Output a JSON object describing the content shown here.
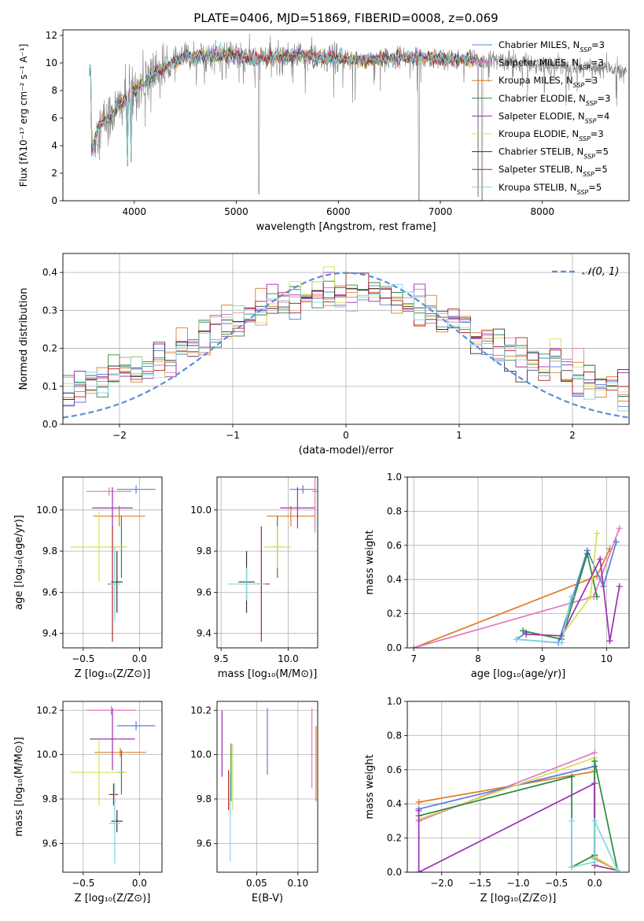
{
  "chart_data": [
    {
      "id": "spectrum",
      "type": "line",
      "title": "PLATE=0406, MJD=51869, FIBERID=0008, z=0.069",
      "xlabel": "wavelength [Angstrom, rest frame]",
      "ylabel": "Flux [fλ10⁻¹⁷ erg cm⁻² s⁻¹ A⁻¹]",
      "xlim": [
        3300,
        8850
      ],
      "ylim": [
        0,
        12.4
      ],
      "xticks": [
        4000,
        5000,
        6000,
        7000,
        8000
      ],
      "yticks": [
        0,
        2,
        4,
        6,
        8,
        10,
        12
      ],
      "data_range": [
        3580,
        8830
      ],
      "model_range": [
        3560,
        7420
      ],
      "legend_position": "top-right",
      "legend": [
        {
          "label": "Chabrier MILES, N_SSP=3",
          "color": "#5b7fd6"
        },
        {
          "label": "Salpeter MILES, N_SSP=3",
          "color": "#e377c2"
        },
        {
          "label": "Kroupa MILES, N_SSP=3",
          "color": "#e07b28"
        },
        {
          "label": "Chabrier ELODIE, N_SSP=3",
          "color": "#2c8a3e"
        },
        {
          "label": "Salpeter ELODIE, N_SSP=4",
          "color": "#9b30b0"
        },
        {
          "label": "Kroupa ELODIE, N_SSP=3",
          "color": "#d4e05a"
        },
        {
          "label": "Chabrier STELIB, N_SSP=5",
          "color": "#333333"
        },
        {
          "label": "Salpeter STELIB, N_SSP=5",
          "color": "#b22222"
        },
        {
          "label": "Kroupa STELIB, N_SSP=5",
          "color": "#7fd6e0"
        }
      ],
      "continuum": [
        [
          3580,
          3.6
        ],
        [
          3650,
          5.4
        ],
        [
          3700,
          5.8
        ],
        [
          3800,
          6.4
        ],
        [
          3900,
          7.3
        ],
        [
          4000,
          8.0
        ],
        [
          4100,
          8.6
        ],
        [
          4200,
          9.4
        ],
        [
          4300,
          9.6
        ],
        [
          4400,
          10.0
        ],
        [
          4500,
          10.4
        ],
        [
          4600,
          10.5
        ],
        [
          4800,
          10.6
        ],
        [
          5000,
          10.5
        ],
        [
          5200,
          10.3
        ],
        [
          5400,
          10.4
        ],
        [
          5600,
          10.6
        ],
        [
          5800,
          10.4
        ],
        [
          6000,
          10.3
        ],
        [
          6200,
          10.2
        ],
        [
          6400,
          10.3
        ],
        [
          6600,
          10.5
        ],
        [
          6800,
          10.4
        ],
        [
          7000,
          10.3
        ],
        [
          7200,
          10.2
        ],
        [
          7400,
          10.1
        ],
        [
          7600,
          10.2
        ],
        [
          7800,
          10.0
        ],
        [
          8000,
          9.9
        ],
        [
          8200,
          9.8
        ],
        [
          8400,
          9.7
        ],
        [
          8600,
          9.6
        ],
        [
          8830,
          9.5
        ]
      ],
      "dips": [
        [
          3934,
          2.5
        ],
        [
          3969,
          2.8
        ],
        [
          4102,
          7.8
        ],
        [
          4862,
          8.8
        ],
        [
          5177,
          9.3
        ],
        [
          5221,
          0.5
        ],
        [
          5890,
          9.4
        ],
        [
          6300,
          9.8
        ],
        [
          6563,
          9.6
        ],
        [
          6790,
          0
        ],
        [
          7370,
          0.3
        ],
        [
          7410,
          0
        ]
      ]
    },
    {
      "id": "residuals",
      "type": "bar",
      "xlabel": "(data-model)/error",
      "ylabel": "Normed distribution",
      "xlim": [
        -2.5,
        2.5
      ],
      "ylim": [
        0,
        0.45
      ],
      "xticks": [
        -2,
        -1,
        0,
        1,
        2
      ],
      "yticks": [
        0.0,
        0.1,
        0.2,
        0.3,
        0.4
      ],
      "bin_width": 0.1,
      "legend": [
        {
          "label": "𝒩(0, 1)",
          "color": "#5b8fd6",
          "style": "dashed"
        }
      ],
      "legend_position": "top-right"
    },
    {
      "id": "age_vs_Z",
      "type": "scatter",
      "xlabel": "Z [log₁₀(Z/Z⊙)]",
      "ylabel": "age  [log₁₀(age/yr)]",
      "xlim": [
        -0.68,
        0.2
      ],
      "ylim": [
        9.33,
        10.16
      ],
      "xticks": [
        -0.5,
        0.0
      ],
      "yticks": [
        9.4,
        9.6,
        9.8,
        10.0
      ],
      "points": [
        {
          "x": -0.03,
          "y": 10.1,
          "xerr": 0.17,
          "yerr": 0.02,
          "color": "#5b7fd6"
        },
        {
          "x": -0.27,
          "y": 10.09,
          "xerr": 0.2,
          "yerr": 0.02,
          "color": "#e377c2"
        },
        {
          "x": -0.18,
          "y": 9.97,
          "xerr": 0.23,
          "yerr": 0.05,
          "color": "#e07b28"
        },
        {
          "x": -0.24,
          "y": 10.01,
          "xerr": 0.18,
          "yerr": 0.1,
          "color": "#9b30b0"
        },
        {
          "x": -0.16,
          "y": 9.82,
          "xerr": 0.03,
          "yerr": 0.15,
          "color": "#2c8a3e"
        },
        {
          "x": -0.36,
          "y": 9.82,
          "xerr": 0.25,
          "yerr": 0.17,
          "color": "#d4e05a"
        },
        {
          "x": -0.2,
          "y": 9.65,
          "xerr": 0.05,
          "yerr": 0.15,
          "color": "#333333"
        },
        {
          "x": -0.24,
          "y": 9.64,
          "xerr": 0.04,
          "yerr": 0.28,
          "color": "#b22222"
        },
        {
          "x": -0.22,
          "y": 9.64,
          "xerr": 0.05,
          "yerr": 0.18,
          "color": "#7fd6e0"
        }
      ]
    },
    {
      "id": "age_vs_mass",
      "type": "scatter",
      "xlabel": "mass [log₁₀(M/M⊙)]",
      "ylabel": "",
      "xlim": [
        9.47,
        10.22
      ],
      "ylim": [
        9.33,
        10.16
      ],
      "xticks": [
        9.5,
        10.0
      ],
      "yticks": [
        9.4,
        9.6,
        9.8,
        10.0
      ],
      "points": [
        {
          "x": 10.11,
          "y": 10.1,
          "xerr": 0.1,
          "yerr": 0.02,
          "color": "#5b7fd6"
        },
        {
          "x": 10.2,
          "y": 10.09,
          "xerr": 0.02,
          "yerr": 0.2,
          "color": "#e377c2"
        },
        {
          "x": 10.02,
          "y": 9.97,
          "xerr": 0.18,
          "yerr": 0.05,
          "color": "#e07b28"
        },
        {
          "x": 10.07,
          "y": 10.01,
          "xerr": 0.13,
          "yerr": 0.1,
          "color": "#9b30b0"
        },
        {
          "x": 9.92,
          "y": 9.82,
          "xerr": 0.03,
          "yerr": 0.15,
          "color": "#2c8a3e"
        },
        {
          "x": 9.92,
          "y": 9.82,
          "xerr": 0.1,
          "yerr": 0.1,
          "color": "#d4e05a"
        },
        {
          "x": 9.69,
          "y": 9.65,
          "xerr": 0.06,
          "yerr": 0.15,
          "color": "#333333"
        },
        {
          "x": 9.8,
          "y": 9.64,
          "xerr": 0.06,
          "yerr": 0.28,
          "color": "#b22222"
        },
        {
          "x": 9.69,
          "y": 9.64,
          "xerr": 0.14,
          "yerr": 0.08,
          "color": "#7fd6e0"
        }
      ]
    },
    {
      "id": "mw_vs_age",
      "type": "line",
      "xlabel": "age  [log₁₀(age/yr)]",
      "ylabel": "mass weight",
      "xlim": [
        6.9,
        10.35
      ],
      "ylim": [
        0,
        1.0
      ],
      "xticks": [
        7,
        8,
        9,
        10
      ],
      "yticks": [
        0.0,
        0.2,
        0.4,
        0.6,
        0.8,
        1.0
      ],
      "series": [
        {
          "color": "#e07b28",
          "x": [
            7.0,
            9.85,
            10.05
          ],
          "y": [
            0.0,
            0.42,
            0.58
          ]
        },
        {
          "color": "#e377c2",
          "x": [
            7.0,
            9.8,
            10.2
          ],
          "y": [
            0.0,
            0.3,
            0.7
          ]
        },
        {
          "color": "#5b7fd6",
          "x": [
            8.75,
            8.6,
            9.25,
            9.7,
            9.95,
            10.15
          ],
          "y": [
            0.09,
            0.05,
            0.03,
            0.57,
            0.36,
            0.62
          ]
        },
        {
          "color": "#2c8a3e",
          "x": [
            8.7,
            9.3,
            9.7,
            9.85
          ],
          "y": [
            0.1,
            0.05,
            0.55,
            0.3
          ]
        },
        {
          "color": "#d4e05a",
          "x": [
            8.75,
            9.3,
            9.75,
            9.85
          ],
          "y": [
            0.08,
            0.07,
            0.3,
            0.67
          ]
        },
        {
          "color": "#9b30b0",
          "x": [
            8.75,
            9.3,
            9.9,
            10.05,
            10.2
          ],
          "y": [
            0.08,
            0.07,
            0.52,
            0.04,
            0.36
          ]
        },
        {
          "color": "#7fd6e0",
          "x": [
            8.6,
            9.3,
            9.45
          ],
          "y": [
            0.05,
            0.03,
            0.3
          ]
        }
      ]
    },
    {
      "id": "mass_vs_Z",
      "type": "scatter",
      "xlabel": "Z [log₁₀(Z/Z⊙)]",
      "ylabel": "mass [log₁₀(M/M⊙)]",
      "xlim": [
        -0.68,
        0.2
      ],
      "ylim": [
        9.47,
        10.24
      ],
      "xticks": [
        -0.5,
        0.0
      ],
      "yticks": [
        9.6,
        9.8,
        10.0,
        10.2
      ],
      "points": [
        {
          "x": -0.03,
          "y": 10.13,
          "xerr": 0.17,
          "yerr": 0.02,
          "color": "#5b7fd6"
        },
        {
          "x": -0.25,
          "y": 10.2,
          "xerr": 0.22,
          "yerr": 0.02,
          "color": "#e377c2"
        },
        {
          "x": -0.17,
          "y": 10.01,
          "xerr": 0.23,
          "yerr": 0.02,
          "color": "#e07b28"
        },
        {
          "x": -0.24,
          "y": 10.07,
          "xerr": 0.2,
          "yerr": 0.14,
          "color": "#9b30b0"
        },
        {
          "x": -0.16,
          "y": 9.92,
          "xerr": 0.03,
          "yerr": 0.1,
          "color": "#2c8a3e"
        },
        {
          "x": -0.36,
          "y": 9.92,
          "xerr": 0.25,
          "yerr": 0.15,
          "color": "#d4e05a"
        },
        {
          "x": -0.2,
          "y": 9.7,
          "xerr": 0.05,
          "yerr": 0.05,
          "color": "#333333"
        },
        {
          "x": -0.23,
          "y": 9.82,
          "xerr": 0.04,
          "yerr": 0.05,
          "color": "#b22222"
        },
        {
          "x": -0.22,
          "y": 9.69,
          "xerr": 0.05,
          "yerr": 0.18,
          "color": "#7fd6e0"
        }
      ]
    },
    {
      "id": "mass_vs_ebv",
      "type": "scatter",
      "xlabel": "E(B-V)",
      "ylabel": "",
      "xlim": [
        0.002,
        0.124
      ],
      "ylim": [
        9.47,
        10.24
      ],
      "xticks": [
        0.05,
        0.1
      ],
      "yticks": [
        9.6,
        9.8,
        10.0,
        10.2
      ],
      "points": [
        {
          "x": 0.063,
          "y": 10.06,
          "xerr": 0,
          "yerr": 0.15,
          "color": "#5b7fd6"
        },
        {
          "x": 0.117,
          "y": 10.03,
          "xerr": 0,
          "yerr": 0.18,
          "color": "#e377c2"
        },
        {
          "x": 0.122,
          "y": 9.96,
          "xerr": 0,
          "yerr": 0.17,
          "color": "#e07b28"
        },
        {
          "x": 0.008,
          "y": 10.05,
          "xerr": 0,
          "yerr": 0.15,
          "color": "#9b30b0"
        },
        {
          "x": 0.019,
          "y": 9.92,
          "xerr": 0,
          "yerr": 0.13,
          "color": "#2c8a3e"
        },
        {
          "x": 0.021,
          "y": 9.9,
          "xerr": 0,
          "yerr": 0.15,
          "color": "#d4e05a"
        },
        {
          "x": 0.016,
          "y": 9.84,
          "xerr": 0,
          "yerr": 0.09,
          "color": "#b22222"
        },
        {
          "x": 0.018,
          "y": 9.72,
          "xerr": 0,
          "yerr": 0.2,
          "color": "#7fd6e0"
        }
      ]
    },
    {
      "id": "mw_vs_Z",
      "type": "line",
      "xlabel": "Z [log₁₀(Z/Z⊙)]",
      "ylabel": "mass weight",
      "xlim": [
        -2.45,
        0.45
      ],
      "ylim": [
        0,
        1.0
      ],
      "xticks": [
        -2.0,
        -1.5,
        -1.0,
        -0.5,
        0.0
      ],
      "yticks": [
        0.0,
        0.2,
        0.4,
        0.6,
        0.8,
        1.0
      ],
      "series": [
        {
          "color": "#e07b28",
          "x": [
            -2.3,
            0.0,
            0.0,
            0.3
          ],
          "y": [
            0.41,
            0.59,
            0.08,
            0.01
          ]
        },
        {
          "color": "#e377c2",
          "x": [
            -2.3,
            0.0,
            0.0,
            0.3
          ],
          "y": [
            0.3,
            0.7,
            0.09,
            0.01
          ]
        },
        {
          "color": "#5b7fd6",
          "x": [
            -2.3,
            0.0,
            0.0,
            0.3
          ],
          "y": [
            0.37,
            0.62,
            0.09,
            0.01
          ]
        },
        {
          "color": "#d4e05a",
          "x": [
            -2.3,
            0.0,
            0.0,
            0.3
          ],
          "y": [
            0.31,
            0.67,
            0.09,
            0.01
          ]
        },
        {
          "color": "#2c8a3e",
          "x": [
            -2.3,
            -0.3,
            -0.3,
            0.0,
            0.0,
            0.3
          ],
          "y": [
            0.33,
            0.56,
            0.03,
            0.1,
            0.65,
            0.01
          ]
        },
        {
          "color": "#9b30b0",
          "x": [
            -2.3,
            -2.3,
            0.0,
            0.0,
            0.3
          ],
          "y": [
            0.36,
            0.0,
            0.52,
            0.04,
            0.01
          ]
        },
        {
          "color": "#7fd6e0",
          "x": [
            -0.3,
            -0.3,
            0.0,
            0.0,
            0.3
          ],
          "y": [
            0.3,
            0.03,
            0.06,
            0.3,
            0.01
          ]
        }
      ]
    }
  ]
}
